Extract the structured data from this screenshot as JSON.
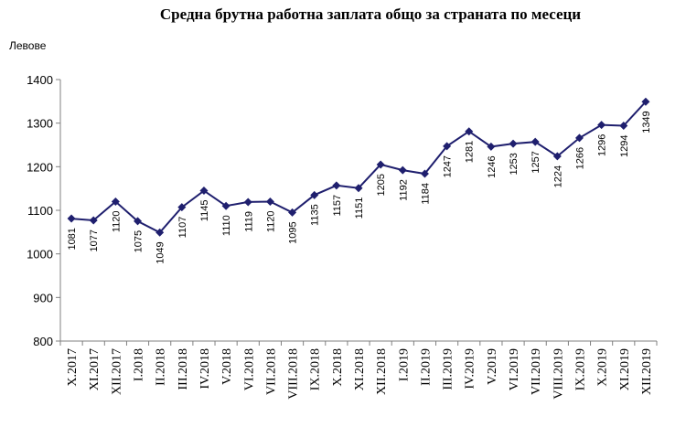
{
  "chart_data": {
    "type": "line",
    "title": "Средна брутна работна заплата общо за страната по месеци",
    "ylabel": "Левове",
    "xlabel": "",
    "ylim": [
      800,
      1400
    ],
    "yticks": [
      800,
      900,
      1000,
      1100,
      1200,
      1300,
      1400
    ],
    "grid": false,
    "legend": "none",
    "marker": "diamond",
    "color": "#1f1f6e",
    "categories": [
      "X.2017",
      "XI.2017",
      "XII.2017",
      "I.2018",
      "II.2018",
      "III.2018",
      "IV.2018",
      "V.2018",
      "VI.2018",
      "VII.2018",
      "VIII.2018",
      "IX.2018",
      "X.2018",
      "XI.2018",
      "XII.2018",
      "I.2019",
      "II.2019",
      "III.2019",
      "IV.2019",
      "V.2019",
      "VI.2019",
      "VII.2019",
      "VIII.2019",
      "IX.2019",
      "X.2019",
      "XI.2019",
      "XII.2019"
    ],
    "values": [
      1081,
      1077,
      1120,
      1075,
      1049,
      1107,
      1145,
      1110,
      1119,
      1120,
      1095,
      1135,
      1157,
      1151,
      1205,
      1192,
      1184,
      1247,
      1281,
      1246,
      1253,
      1257,
      1224,
      1266,
      1296,
      1294,
      1349
    ],
    "data_labels": [
      "1081",
      "1077",
      "1120",
      "1075",
      "1049",
      "1107",
      "1145",
      "1110",
      "1119",
      "1120",
      "1095",
      "1135",
      "1157",
      "1151",
      "1205",
      "1192",
      "1184",
      "1247",
      "1281",
      "1246",
      "1253",
      "1257",
      "1224",
      "1266",
      "1296",
      "1294",
      "1349"
    ]
  }
}
